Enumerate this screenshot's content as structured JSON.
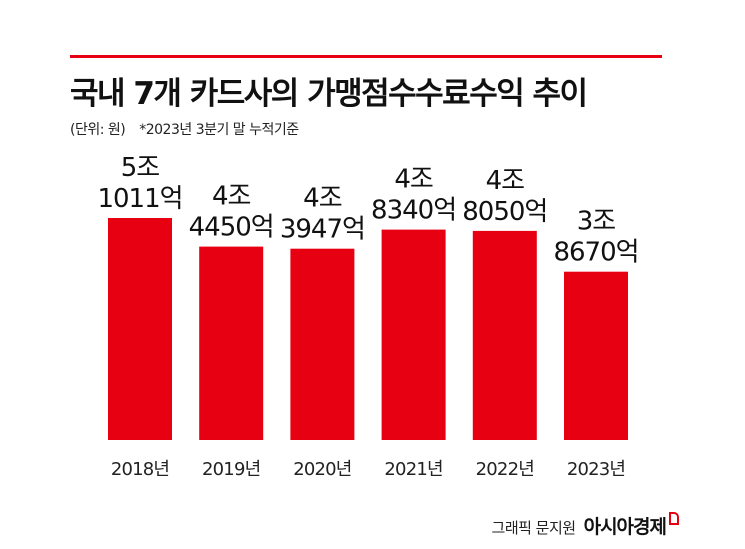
{
  "title": "국내 7개 카드사의 가맹점수수료수익 추이",
  "subtitle_unit": "(단위: 원)",
  "subtitle_note": "*2023년 3분기 말 누적기준",
  "footer": {
    "credit": "그래픽 문지원",
    "brand": "아시아경제"
  },
  "colors": {
    "bar": "#e60012",
    "accent": "#e60012",
    "text": "#111111"
  },
  "chart_data": {
    "type": "bar",
    "title": "국내 7개 카드사의 가맹점수수료수익 추이",
    "xlabel": "",
    "ylabel": "",
    "unit": "원",
    "categories": [
      "2018년",
      "2019년",
      "2020년",
      "2021년",
      "2022년",
      "2023년"
    ],
    "values": [
      51011,
      44450,
      43947,
      48340,
      48050,
      38670
    ],
    "value_unit": "억원",
    "labels": [
      [
        "5조",
        "1011억"
      ],
      [
        "4조",
        "4450억"
      ],
      [
        "4조",
        "3947억"
      ],
      [
        "4조",
        "8340억"
      ],
      [
        "4조",
        "8050억"
      ],
      [
        "3조",
        "8670억"
      ]
    ],
    "legend": "none",
    "grid": false
  }
}
